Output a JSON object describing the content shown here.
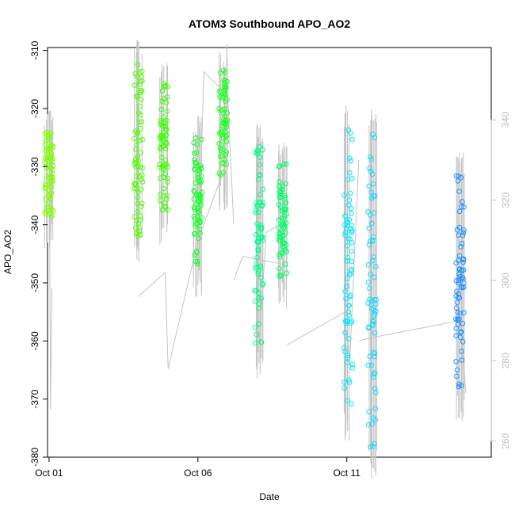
{
  "chart_data": {
    "type": "scatter",
    "title": "ATOM3 Southbound APO_AO2",
    "xlabel": "Date",
    "ylabel": "APO_AO2",
    "xlim": [
      -0.05,
      14.85
    ],
    "ylim": [
      -380,
      -309.5
    ],
    "y2lim": [
      256,
      358
    ],
    "xticks": [
      {
        "label": "Oct 01",
        "value": 0
      },
      {
        "label": "Oct 06",
        "value": 5
      },
      {
        "label": "Oct 11",
        "value": 10
      }
    ],
    "yticks": [
      -380,
      -370,
      -360,
      -350,
      -340,
      -330,
      -320,
      -310
    ],
    "y2ticks": [
      260,
      280,
      300,
      320,
      340
    ],
    "grid": false,
    "legend": "none",
    "colors": {
      "axis": "#000000",
      "secondary_axis": "#bdbdbd",
      "secondary_line": "#c4c4c4"
    },
    "point_clusters": [
      {
        "x": 0.0,
        "y_min": -338.5,
        "y_max": -324,
        "color": "#7fff00"
      },
      {
        "x": 3.0,
        "y_min": -342,
        "y_max": -312,
        "color": "#4dff00"
      },
      {
        "x": 3.85,
        "y_min": -337.5,
        "y_max": -315.5,
        "color": "#3dff00"
      },
      {
        "x": 5.0,
        "y_min": -347,
        "y_max": -325,
        "color": "#1aff2a"
      },
      {
        "x": 5.85,
        "y_min": -332,
        "y_max": -313,
        "color": "#22ff22"
      },
      {
        "x": 7.05,
        "y_min": -360.5,
        "y_max": -326.5,
        "color": "#00ff88"
      },
      {
        "x": 7.85,
        "y_min": -349,
        "y_max": -329.5,
        "color": "#00ff66"
      },
      {
        "x": 10.05,
        "y_min": -371.5,
        "y_max": -323.5,
        "color": "#00e8ff"
      },
      {
        "x": 10.85,
        "y_min": -378.5,
        "y_max": -324,
        "color": "#1ad8ff"
      },
      {
        "x": 13.8,
        "y_min": -368,
        "y_max": -331.5,
        "color": "#1e90ff"
      }
    ],
    "secondary_series": {
      "name": "",
      "segments": [
        {
          "x": [
            0.0,
            0.05,
            0.1
          ],
          "y": [
            342,
            268,
            298
          ]
        },
        {
          "x": [
            3.0,
            3.9
          ],
          "y": [
            296,
            302
          ]
        },
        {
          "x": [
            3.9,
            4.0,
            5.0,
            6.0
          ],
          "y": [
            302,
            278,
            310,
            330
          ]
        },
        {
          "x": [
            5.0,
            5.2,
            6.0,
            6.2
          ],
          "y": [
            299,
            352,
            346,
            314
          ]
        },
        {
          "x": [
            6.2,
            6.5,
            7.9
          ],
          "y": [
            300,
            306,
            304
          ]
        },
        {
          "x": [
            7.05,
            7.3,
            8.0
          ],
          "y": [
            284,
            312,
            315
          ]
        },
        {
          "x": [
            8.0,
            9.9,
            10.1,
            10.4
          ],
          "y": [
            284,
            292,
            280,
            330
          ]
        },
        {
          "x": [
            10.4,
            11.0,
            13.8,
            14.0
          ],
          "y": [
            285,
            286,
            290,
            272
          ]
        }
      ]
    }
  }
}
